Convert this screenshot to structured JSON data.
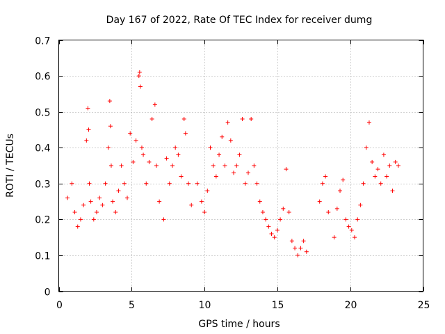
{
  "chart_data": {
    "type": "scatter",
    "title": "Day 167 of 2022, Rate Of TEC Index for receiver dumg",
    "xlabel": "GPS time / hours",
    "ylabel": "ROTI / TECUs",
    "xlim": [
      0,
      25
    ],
    "ylim": [
      0,
      0.7
    ],
    "xticks": [
      "0",
      "5",
      "10",
      "15",
      "20",
      "25"
    ],
    "yticks": [
      "0",
      "0.1",
      "0.2",
      "0.3",
      "0.4",
      "0.5",
      "0.6",
      "0.7"
    ],
    "grid": true,
    "marker": "+",
    "series_color": "#ff0000",
    "series": [
      {
        "x": [
          0.6,
          0.9,
          1.1,
          1.3,
          1.5,
          1.7,
          1.9,
          2.0,
          2.05,
          2.1,
          2.2,
          2.4,
          2.6,
          2.8,
          3.0,
          3.2,
          3.4,
          3.5,
          3.55,
          3.6,
          3.7,
          3.9,
          4.1,
          4.3,
          4.5,
          4.7,
          4.9,
          5.1,
          5.3,
          5.5,
          5.55,
          5.6,
          5.7,
          5.8,
          6.0,
          6.2,
          6.4,
          6.6,
          6.7,
          6.9,
          7.2,
          7.4,
          7.6,
          7.8,
          8.0,
          8.2,
          8.4,
          8.6,
          8.7,
          8.9,
          9.1,
          9.5,
          9.8,
          10.0,
          10.2,
          10.4,
          10.6,
          10.8,
          11.0,
          11.2,
          11.4,
          11.6,
          11.8,
          12.0,
          12.2,
          12.4,
          12.6,
          12.8,
          13.0,
          13.2,
          13.4,
          13.6,
          13.8,
          14.0,
          14.2,
          14.4,
          14.6,
          14.8,
          15.0,
          15.2,
          15.4,
          15.6,
          15.8,
          16.0,
          16.2,
          16.4,
          16.6,
          16.8,
          17.0,
          17.9,
          18.1,
          18.3,
          18.5,
          18.9,
          19.1,
          19.3,
          19.5,
          19.7,
          19.9,
          20.1,
          20.3,
          20.5,
          20.7,
          20.9,
          21.1,
          21.3,
          21.5,
          21.7,
          21.9,
          22.1,
          22.3,
          22.5,
          22.7,
          22.9,
          23.1,
          23.3
        ],
        "y": [
          0.26,
          0.3,
          0.22,
          0.18,
          0.2,
          0.24,
          0.42,
          0.51,
          0.45,
          0.3,
          0.25,
          0.2,
          0.22,
          0.26,
          0.24,
          0.3,
          0.4,
          0.53,
          0.46,
          0.35,
          0.25,
          0.22,
          0.28,
          0.35,
          0.3,
          0.26,
          0.44,
          0.36,
          0.42,
          0.6,
          0.61,
          0.57,
          0.4,
          0.38,
          0.3,
          0.36,
          0.48,
          0.52,
          0.35,
          0.25,
          0.2,
          0.37,
          0.3,
          0.35,
          0.4,
          0.38,
          0.32,
          0.48,
          0.44,
          0.3,
          0.24,
          0.3,
          0.25,
          0.22,
          0.28,
          0.4,
          0.35,
          0.32,
          0.38,
          0.43,
          0.35,
          0.47,
          0.42,
          0.33,
          0.35,
          0.38,
          0.48,
          0.3,
          0.33,
          0.48,
          0.35,
          0.3,
          0.25,
          0.22,
          0.2,
          0.18,
          0.16,
          0.15,
          0.17,
          0.2,
          0.23,
          0.34,
          0.22,
          0.14,
          0.12,
          0.1,
          0.12,
          0.14,
          0.11,
          0.25,
          0.3,
          0.32,
          0.22,
          0.15,
          0.23,
          0.28,
          0.31,
          0.2,
          0.18,
          0.17,
          0.15,
          0.2,
          0.24,
          0.3,
          0.4,
          0.47,
          0.36,
          0.32,
          0.34,
          0.3,
          0.38,
          0.32,
          0.35,
          0.28,
          0.36,
          0.35
        ]
      }
    ]
  }
}
